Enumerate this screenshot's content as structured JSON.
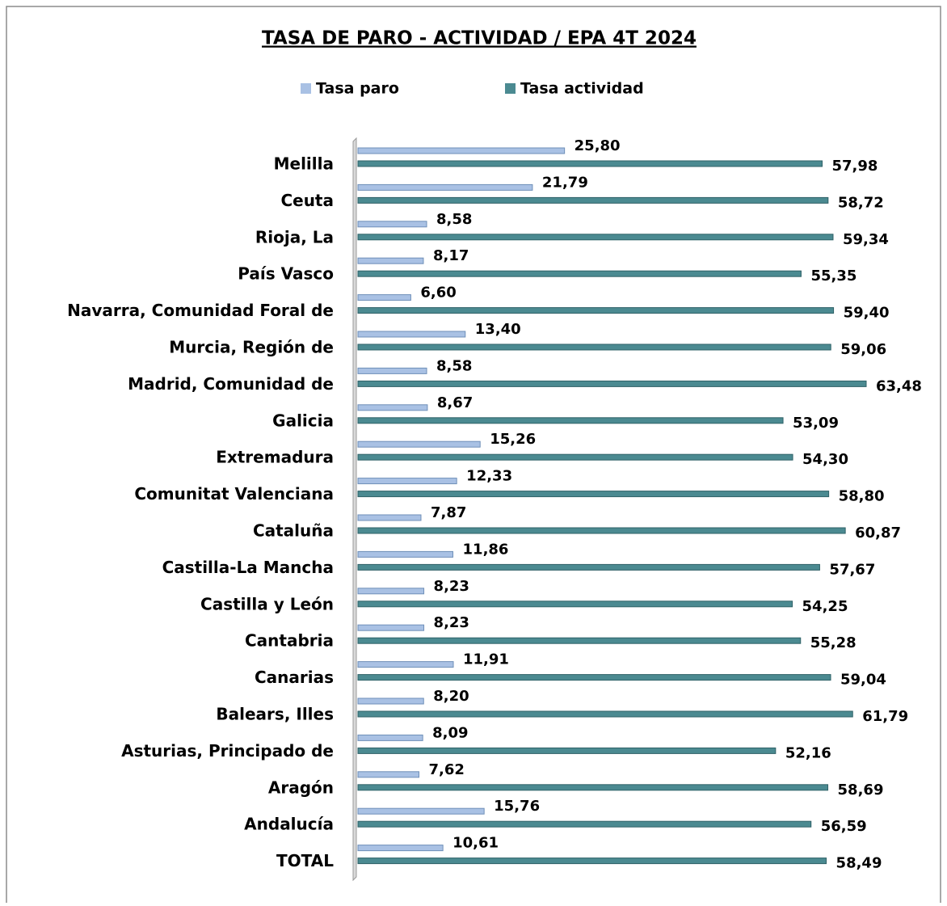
{
  "chart_data": {
    "type": "barh",
    "title": "TASA DE PARO - ACTIVIDAD / EPA 4T 2024",
    "categories": [
      "Melilla",
      "Ceuta",
      "Rioja, La",
      "País Vasco",
      "Navarra, Comunidad Foral de",
      "Murcia, Región de",
      "Madrid, Comunidad de",
      "Galicia",
      "Extremadura",
      "Comunitat Valenciana",
      "Cataluña",
      "Castilla-La Mancha",
      "Castilla y León",
      "Cantabria",
      "Canarias",
      "Balears, Illes",
      "Asturias, Principado de",
      "Aragón",
      "Andalucía",
      "TOTAL"
    ],
    "series": [
      {
        "name": "Tasa paro",
        "color": "#a9c1e4",
        "values": [
          25.8,
          21.79,
          8.58,
          8.17,
          6.6,
          13.4,
          8.58,
          8.67,
          15.26,
          12.33,
          7.87,
          11.86,
          8.23,
          8.23,
          11.91,
          8.2,
          8.09,
          7.62,
          15.76,
          10.61
        ],
        "value_labels": [
          "25,80",
          "21,79",
          "8,58",
          "8,17",
          "6,60",
          "13,40",
          "8,58",
          "8,67",
          "15,26",
          "12,33",
          "7,87",
          "11,86",
          "8,23",
          "8,23",
          "11,91",
          "8,20",
          "8,09",
          "7,62",
          "15,76",
          "10,61"
        ]
      },
      {
        "name": "Tasa actividad",
        "color": "#4b8a91",
        "values": [
          57.98,
          58.72,
          59.34,
          55.35,
          59.4,
          59.06,
          63.48,
          53.09,
          54.3,
          58.8,
          60.87,
          57.67,
          54.25,
          55.28,
          59.04,
          61.79,
          52.16,
          58.69,
          56.59,
          58.49
        ],
        "value_labels": [
          "57,98",
          "58,72",
          "59,34",
          "55,35",
          "59,40",
          "59,06",
          "63,48",
          "53,09",
          "54,30",
          "58,80",
          "60,87",
          "57,67",
          "54,25",
          "55,28",
          "59,04",
          "61,79",
          "52,16",
          "58,69",
          "56,59",
          "58,49"
        ]
      }
    ],
    "legend": "top"
  }
}
